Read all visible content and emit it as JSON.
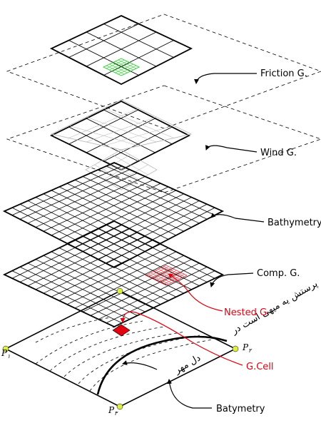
{
  "layers": {
    "friction": "Friction G.",
    "wind": "Wind G.",
    "bathymetry": "Bathymetry",
    "computational": "Comp. G.",
    "nested": "Nested G.",
    "gcell": "G.Cell",
    "batymetry": "Batymetry"
  },
  "points": {
    "p1": {
      "letter": "P",
      "sub": "۱"
    },
    "p2": {
      "letter": "P",
      "sub": "۲"
    },
    "p3": {
      "letter": "P",
      "sub": "۳"
    }
  },
  "note_lines": [
    "پرستش یه میهی است در",
    "دل مهر"
  ],
  "colors": {
    "grid": "#000000",
    "nested": "#e3000f",
    "friction_fine": "#22cc22",
    "points": "#ddee44",
    "faded": "#bbbbbb"
  }
}
